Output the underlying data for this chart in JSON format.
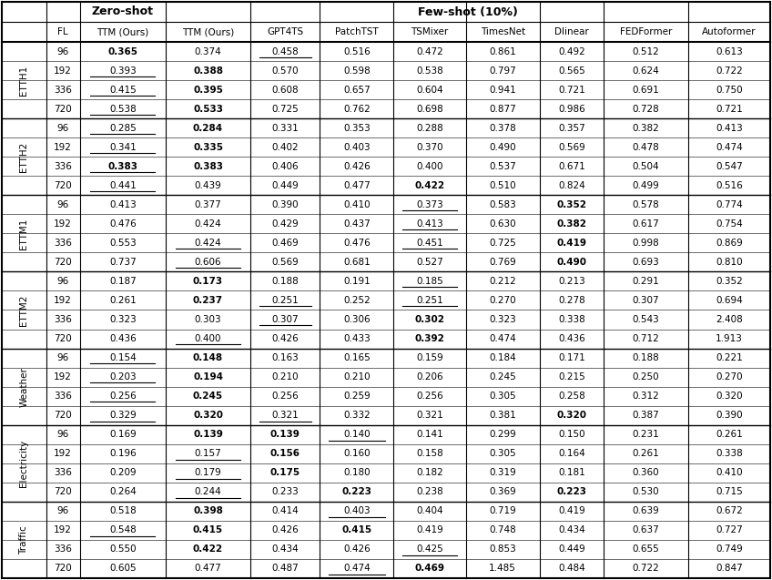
{
  "title_zeroshot": "Zero-shot",
  "title_fewshot": "Few-shot (10%)",
  "col_headers": [
    "FL",
    "TTM (Ours)",
    "TTM (Ours)",
    "GPT4TS",
    "PatchTST",
    "TSMixer",
    "TimesNet",
    "Dlinear",
    "FEDFormer",
    "Autoformer"
  ],
  "row_groups": [
    "ETTH1",
    "ETTH2",
    "ETTM1",
    "ETTM2",
    "Weather",
    "Electricity",
    "Traffic"
  ],
  "fl_values": [
    "96",
    "192",
    "336",
    "720"
  ],
  "data": {
    "ETTH1": {
      "96": [
        "0.365",
        "0.374",
        "0.458",
        "0.516",
        "0.472",
        "0.861",
        "0.492",
        "0.512",
        "0.613"
      ],
      "192": [
        "0.393",
        "0.388",
        "0.570",
        "0.598",
        "0.538",
        "0.797",
        "0.565",
        "0.624",
        "0.722"
      ],
      "336": [
        "0.415",
        "0.395",
        "0.608",
        "0.657",
        "0.604",
        "0.941",
        "0.721",
        "0.691",
        "0.750"
      ],
      "720": [
        "0.538",
        "0.533",
        "0.725",
        "0.762",
        "0.698",
        "0.877",
        "0.986",
        "0.728",
        "0.721"
      ]
    },
    "ETTH2": {
      "96": [
        "0.285",
        "0.284",
        "0.331",
        "0.353",
        "0.288",
        "0.378",
        "0.357",
        "0.382",
        "0.413"
      ],
      "192": [
        "0.341",
        "0.335",
        "0.402",
        "0.403",
        "0.370",
        "0.490",
        "0.569",
        "0.478",
        "0.474"
      ],
      "336": [
        "0.383",
        "0.383",
        "0.406",
        "0.426",
        "0.400",
        "0.537",
        "0.671",
        "0.504",
        "0.547"
      ],
      "720": [
        "0.441",
        "0.439",
        "0.449",
        "0.477",
        "0.422",
        "0.510",
        "0.824",
        "0.499",
        "0.516"
      ]
    },
    "ETTM1": {
      "96": [
        "0.413",
        "0.377",
        "0.390",
        "0.410",
        "0.373",
        "0.583",
        "0.352",
        "0.578",
        "0.774"
      ],
      "192": [
        "0.476",
        "0.424",
        "0.429",
        "0.437",
        "0.413",
        "0.630",
        "0.382",
        "0.617",
        "0.754"
      ],
      "336": [
        "0.553",
        "0.424",
        "0.469",
        "0.476",
        "0.451",
        "0.725",
        "0.419",
        "0.998",
        "0.869"
      ],
      "720": [
        "0.737",
        "0.606",
        "0.569",
        "0.681",
        "0.527",
        "0.769",
        "0.490",
        "0.693",
        "0.810"
      ]
    },
    "ETTM2": {
      "96": [
        "0.187",
        "0.173",
        "0.188",
        "0.191",
        "0.185",
        "0.212",
        "0.213",
        "0.291",
        "0.352"
      ],
      "192": [
        "0.261",
        "0.237",
        "0.251",
        "0.252",
        "0.251",
        "0.270",
        "0.278",
        "0.307",
        "0.694"
      ],
      "336": [
        "0.323",
        "0.303",
        "0.307",
        "0.306",
        "0.302",
        "0.323",
        "0.338",
        "0.543",
        "2.408"
      ],
      "720": [
        "0.436",
        "0.400",
        "0.426",
        "0.433",
        "0.392",
        "0.474",
        "0.436",
        "0.712",
        "1.913"
      ]
    },
    "Weather": {
      "96": [
        "0.154",
        "0.148",
        "0.163",
        "0.165",
        "0.159",
        "0.184",
        "0.171",
        "0.188",
        "0.221"
      ],
      "192": [
        "0.203",
        "0.194",
        "0.210",
        "0.210",
        "0.206",
        "0.245",
        "0.215",
        "0.250",
        "0.270"
      ],
      "336": [
        "0.256",
        "0.245",
        "0.256",
        "0.259",
        "0.256",
        "0.305",
        "0.258",
        "0.312",
        "0.320"
      ],
      "720": [
        "0.329",
        "0.320",
        "0.321",
        "0.332",
        "0.321",
        "0.381",
        "0.320",
        "0.387",
        "0.390"
      ]
    },
    "Electricity": {
      "96": [
        "0.169",
        "0.139",
        "0.139",
        "0.140",
        "0.141",
        "0.299",
        "0.150",
        "0.231",
        "0.261"
      ],
      "192": [
        "0.196",
        "0.157",
        "0.156",
        "0.160",
        "0.158",
        "0.305",
        "0.164",
        "0.261",
        "0.338"
      ],
      "336": [
        "0.209",
        "0.179",
        "0.175",
        "0.180",
        "0.182",
        "0.319",
        "0.181",
        "0.360",
        "0.410"
      ],
      "720": [
        "0.264",
        "0.244",
        "0.233",
        "0.223",
        "0.238",
        "0.369",
        "0.223",
        "0.530",
        "0.715"
      ]
    },
    "Traffic": {
      "96": [
        "0.518",
        "0.398",
        "0.414",
        "0.403",
        "0.404",
        "0.719",
        "0.419",
        "0.639",
        "0.672"
      ],
      "192": [
        "0.548",
        "0.415",
        "0.426",
        "0.415",
        "0.419",
        "0.748",
        "0.434",
        "0.637",
        "0.727"
      ],
      "336": [
        "0.550",
        "0.422",
        "0.434",
        "0.426",
        "0.425",
        "0.853",
        "0.449",
        "0.655",
        "0.749"
      ],
      "720": [
        "0.605",
        "0.477",
        "0.487",
        "0.474",
        "0.469",
        "1.485",
        "0.484",
        "0.722",
        "0.847"
      ]
    }
  },
  "bold": {
    "ETTH1": {
      "96": [
        0
      ],
      "192": [
        1
      ],
      "336": [
        1
      ],
      "720": [
        1
      ]
    },
    "ETTH2": {
      "96": [
        1
      ],
      "192": [
        1
      ],
      "336": [
        0,
        1
      ],
      "720": [
        4
      ]
    },
    "ETTM1": {
      "96": [
        6
      ],
      "192": [
        6
      ],
      "336": [
        6
      ],
      "720": [
        6
      ]
    },
    "ETTM2": {
      "96": [
        1
      ],
      "192": [
        1
      ],
      "336": [
        4
      ],
      "720": [
        4
      ]
    },
    "Weather": {
      "96": [
        1
      ],
      "192": [
        1
      ],
      "336": [
        1
      ],
      "720": [
        1,
        6
      ]
    },
    "Electricity": {
      "96": [
        1,
        2
      ],
      "192": [
        2
      ],
      "336": [
        2
      ],
      "720": [
        3,
        6
      ]
    },
    "Traffic": {
      "96": [
        1
      ],
      "192": [
        1,
        3
      ],
      "336": [
        1
      ],
      "720": [
        4
      ]
    }
  },
  "underline": {
    "ETTH1": {
      "96": [
        2
      ],
      "192": [
        0
      ],
      "336": [
        0
      ],
      "720": [
        0
      ]
    },
    "ETTH2": {
      "96": [
        0
      ],
      "192": [
        0
      ],
      "336": [
        0
      ],
      "720": [
        0
      ]
    },
    "ETTM1": {
      "96": [
        4
      ],
      "192": [
        4
      ],
      "336": [
        1,
        4
      ],
      "720": [
        1
      ]
    },
    "ETTM2": {
      "96": [
        4
      ],
      "192": [
        2,
        4
      ],
      "336": [
        2
      ],
      "720": [
        1
      ]
    },
    "Weather": {
      "96": [
        0
      ],
      "192": [
        0
      ],
      "336": [
        0
      ],
      "720": [
        0,
        2
      ]
    },
    "Electricity": {
      "96": [
        3
      ],
      "192": [
        1
      ],
      "336": [
        1
      ],
      "720": [
        1
      ]
    },
    "Traffic": {
      "96": [
        3
      ],
      "192": [
        0
      ],
      "336": [
        4
      ],
      "720": [
        3
      ]
    }
  },
  "figsize": [
    8.48,
    6.37
  ],
  "dpi": 100
}
